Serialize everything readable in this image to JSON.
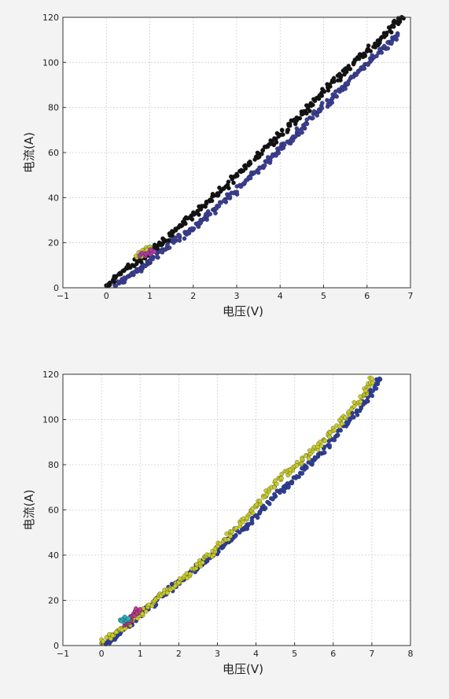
{
  "colors": {
    "page_background": "#f3f3f3",
    "plot_background": "#ffffff",
    "grid": "#cfcfcf",
    "frame": "#333333"
  },
  "chart_data": [
    {
      "type": "scatter",
      "xlabel": "电压(V)",
      "ylabel": "电流(A)",
      "xlim": [
        -1,
        7
      ],
      "ylim": [
        0,
        120
      ],
      "xticks": [
        -1,
        0,
        1,
        2,
        3,
        4,
        5,
        6,
        7
      ],
      "yticks": [
        0,
        20,
        40,
        60,
        80,
        100,
        120
      ],
      "grid": true,
      "series": [
        {
          "color": "#3a3f9a",
          "points": [
            [
              0.2,
              1
            ],
            [
              0.5,
              5
            ],
            [
              0.8,
              9
            ],
            [
              1.0,
              12
            ],
            [
              1.3,
              17
            ],
            [
              1.6,
              21
            ],
            [
              1.9,
              25
            ],
            [
              2.2,
              30
            ],
            [
              2.5,
              35
            ],
            [
              2.8,
              40
            ],
            [
              3.1,
              45
            ],
            [
              3.4,
              51
            ],
            [
              3.7,
              56
            ],
            [
              4.0,
              62
            ],
            [
              4.3,
              67
            ],
            [
              4.6,
              73
            ],
            [
              4.9,
              79
            ],
            [
              5.2,
              84
            ],
            [
              5.5,
              90
            ],
            [
              5.8,
              96
            ],
            [
              6.1,
              101
            ],
            [
              6.4,
              107
            ],
            [
              6.7,
              112
            ]
          ]
        },
        {
          "color": "#111111",
          "points": [
            [
              0.0,
              1
            ],
            [
              0.3,
              6
            ],
            [
              0.6,
              10
            ],
            [
              0.9,
              15
            ],
            [
              1.2,
              19
            ],
            [
              1.5,
              24
            ],
            [
              1.8,
              29
            ],
            [
              2.1,
              34
            ],
            [
              2.4,
              39
            ],
            [
              2.7,
              44
            ],
            [
              3.0,
              50
            ],
            [
              3.3,
              55
            ],
            [
              3.6,
              61
            ],
            [
              3.9,
              66
            ],
            [
              4.2,
              72
            ],
            [
              4.5,
              77
            ],
            [
              4.8,
              83
            ],
            [
              5.1,
              89
            ],
            [
              5.4,
              94
            ],
            [
              5.7,
              100
            ],
            [
              6.0,
              105
            ],
            [
              6.3,
              110
            ],
            [
              6.6,
              116
            ],
            [
              6.8,
              120
            ]
          ]
        },
        {
          "color": "#c9c934",
          "points": [
            [
              0.7,
              14
            ],
            [
              0.9,
              16
            ],
            [
              1.0,
              18
            ]
          ]
        },
        {
          "color": "#b23aa8",
          "points": [
            [
              0.8,
              15
            ],
            [
              1.1,
              16
            ]
          ]
        }
      ]
    },
    {
      "type": "scatter",
      "xlabel": "电压(V)",
      "ylabel": "电流(A)",
      "xlim": [
        -1,
        8
      ],
      "ylim": [
        0,
        120
      ],
      "xticks": [
        -1,
        0,
        1,
        2,
        3,
        4,
        5,
        6,
        7,
        8
      ],
      "yticks": [
        0,
        20,
        40,
        60,
        80,
        100,
        120
      ],
      "grid": true,
      "series": [
        {
          "color": "#2e3f9e",
          "points": [
            [
              0.1,
              1
            ],
            [
              0.5,
              6
            ],
            [
              0.9,
              12
            ],
            [
              1.3,
              18
            ],
            [
              1.7,
              24
            ],
            [
              2.1,
              29
            ],
            [
              2.5,
              35
            ],
            [
              2.9,
              40
            ],
            [
              3.3,
              46
            ],
            [
              3.7,
              52
            ],
            [
              4.1,
              59
            ],
            [
              4.5,
              66
            ],
            [
              4.9,
              72
            ],
            [
              5.3,
              79
            ],
            [
              5.7,
              85
            ],
            [
              6.1,
              93
            ],
            [
              6.5,
              101
            ],
            [
              6.9,
              110
            ],
            [
              7.2,
              118
            ]
          ]
        },
        {
          "color": "#c8cc2a",
          "points": [
            [
              0.0,
              1
            ],
            [
              0.4,
              6
            ],
            [
              0.8,
              11
            ],
            [
              1.2,
              17
            ],
            [
              1.6,
              23
            ],
            [
              2.0,
              28
            ],
            [
              2.4,
              34
            ],
            [
              2.8,
              40
            ],
            [
              3.2,
              47
            ],
            [
              3.6,
              54
            ],
            [
              4.0,
              62
            ],
            [
              4.4,
              70
            ],
            [
              4.8,
              77
            ],
            [
              5.2,
              82
            ],
            [
              5.6,
              88
            ],
            [
              6.0,
              95
            ],
            [
              6.4,
              103
            ],
            [
              6.8,
              111
            ],
            [
              7.0,
              118
            ]
          ]
        },
        {
          "color": "#c0398f",
          "points": [
            [
              0.6,
              9
            ],
            [
              0.8,
              13
            ],
            [
              1.0,
              16
            ]
          ]
        },
        {
          "color": "#2bb0c0",
          "points": [
            [
              0.5,
              11
            ],
            [
              0.7,
              12
            ]
          ]
        }
      ]
    }
  ]
}
